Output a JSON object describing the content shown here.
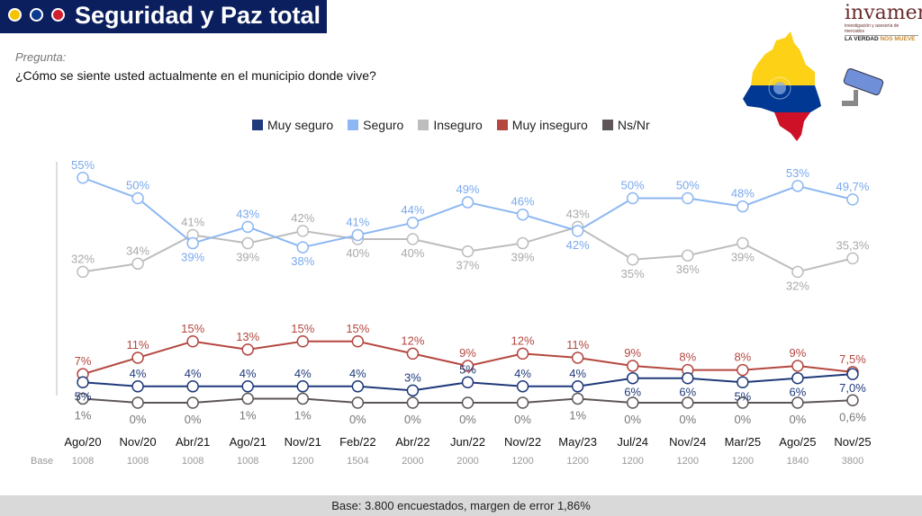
{
  "header": {
    "title": "Seguridad y Paz total",
    "dots": [
      "#f5c400",
      "#0b3a8f",
      "#d0202e"
    ]
  },
  "question": {
    "label": "Pregunta:",
    "text": "¿Cómo se siente usted actualmente en el municipio donde vive?"
  },
  "logo": {
    "name": "invamer",
    "subtitle": "investigación y asesoría de mercados",
    "tagline_a": "LA VERDAD ",
    "tagline_b": "NOS MUEVE"
  },
  "footer": {
    "text": "Base: 3.800 encuestados, margen de error 1,86%"
  },
  "chart_data": {
    "type": "line",
    "title": "",
    "categories": [
      "Ago/20",
      "Nov/20",
      "Abr/21",
      "Ago/21",
      "Nov/21",
      "Feb/22",
      "Abr/22",
      "Jun/22",
      "Nov/22",
      "May/23",
      "Jul/24",
      "Nov/24",
      "Mar/25",
      "Ago/25",
      "Nov/25"
    ],
    "base_label": "Base",
    "base": [
      "1008",
      "1008",
      "1008",
      "1008",
      "1200",
      "1504",
      "2000",
      "2000",
      "1200",
      "1200",
      "1200",
      "1200",
      "1200",
      "1840",
      "3800"
    ],
    "ylim": [
      0,
      55
    ],
    "grid": false,
    "legend": "top",
    "series": [
      {
        "name": "Muy seguro",
        "color": "#1f3a7a",
        "values": [
          5,
          4,
          4,
          4,
          4,
          4,
          3,
          5,
          4,
          4,
          6,
          6,
          5,
          6,
          7.0
        ],
        "labels": [
          "5%",
          "4%",
          "4%",
          "4%",
          "4%",
          "4%",
          "3%",
          "5%",
          "4%",
          "4%",
          "6%",
          "6%",
          "5%",
          "6%",
          "7,0%"
        ]
      },
      {
        "name": "Seguro",
        "color": "#8db7f2",
        "values": [
          55,
          50,
          39,
          43,
          38,
          41,
          44,
          49,
          46,
          42,
          50,
          50,
          48,
          53,
          49.7
        ],
        "labels": [
          "55%",
          "50%",
          "39%",
          "43%",
          "38%",
          "41%",
          "44%",
          "49%",
          "46%",
          "42%",
          "50%",
          "50%",
          "48%",
          "53%",
          "49,7%"
        ]
      },
      {
        "name": "Inseguro",
        "color": "#bdbdbd",
        "values": [
          32,
          34,
          41,
          39,
          42,
          40,
          40,
          37,
          39,
          43,
          35,
          36,
          39,
          32,
          35.3
        ],
        "labels": [
          "32%",
          "34%",
          "41%",
          "39%",
          "42%",
          "40%",
          "40%",
          "37%",
          "39%",
          "43%",
          "35%",
          "36%",
          "39%",
          "32%",
          "35,3%"
        ]
      },
      {
        "name": "Muy inseguro",
        "color": "#b4473f",
        "values": [
          7,
          11,
          15,
          13,
          15,
          15,
          12,
          9,
          12,
          11,
          9,
          8,
          8,
          9,
          7.5
        ],
        "labels": [
          "7%",
          "11%",
          "15%",
          "13%",
          "15%",
          "15%",
          "12%",
          "9%",
          "12%",
          "11%",
          "9%",
          "8%",
          "8%",
          "9%",
          "7,5%"
        ]
      },
      {
        "name": "Ns/Nr",
        "color": "#5e5656",
        "values": [
          1,
          0,
          0,
          1,
          1,
          0,
          0,
          0,
          0,
          1,
          0,
          0,
          0,
          0,
          0.6
        ],
        "labels": [
          "1%",
          "0%",
          "0%",
          "1%",
          "1%",
          "0%",
          "0%",
          "0%",
          "0%",
          "1%",
          "0%",
          "0%",
          "0%",
          "0%",
          "0,6%"
        ]
      }
    ]
  }
}
